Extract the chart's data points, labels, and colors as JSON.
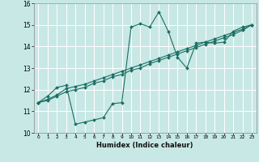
{
  "xlabel": "Humidex (Indice chaleur)",
  "background_color": "#c8e8e5",
  "grid_color": "#ffffff",
  "line_color": "#1a6e64",
  "xlim": [
    -0.5,
    23.5
  ],
  "ylim": [
    10,
    16
  ],
  "xticks": [
    0,
    1,
    2,
    3,
    4,
    5,
    6,
    7,
    8,
    9,
    10,
    11,
    12,
    13,
    14,
    15,
    16,
    17,
    18,
    19,
    20,
    21,
    22,
    23
  ],
  "yticks": [
    10,
    11,
    12,
    13,
    14,
    15,
    16
  ],
  "line1_x": [
    0,
    1,
    2,
    3,
    4,
    5,
    6,
    7,
    8,
    9,
    10,
    11,
    12,
    13,
    14,
    15,
    16,
    17,
    18,
    19,
    20,
    21,
    22,
    23
  ],
  "line1_y": [
    11.4,
    11.7,
    12.1,
    12.2,
    10.4,
    10.5,
    10.6,
    10.7,
    11.35,
    11.4,
    14.9,
    15.05,
    14.9,
    15.6,
    14.7,
    13.5,
    13.0,
    14.15,
    14.2,
    14.15,
    14.2,
    14.7,
    14.9,
    15.0
  ],
  "line2_x": [
    0,
    1,
    2,
    3,
    4,
    5,
    6,
    7,
    8,
    9,
    10,
    11,
    12,
    13,
    14,
    15,
    16,
    17,
    18,
    19,
    20,
    21,
    22,
    23
  ],
  "line2_y": [
    11.4,
    11.5,
    11.7,
    11.9,
    12.0,
    12.1,
    12.3,
    12.4,
    12.6,
    12.7,
    12.9,
    13.0,
    13.2,
    13.35,
    13.5,
    13.65,
    13.8,
    13.95,
    14.1,
    14.25,
    14.4,
    14.55,
    14.75,
    15.0
  ],
  "line3_x": [
    0,
    1,
    2,
    3,
    4,
    5,
    6,
    7,
    8,
    9,
    10,
    11,
    12,
    13,
    14,
    15,
    16,
    17,
    18,
    19,
    20,
    21,
    22,
    23
  ],
  "line3_y": [
    11.4,
    11.55,
    11.75,
    12.05,
    12.15,
    12.25,
    12.4,
    12.55,
    12.7,
    12.85,
    13.0,
    13.15,
    13.3,
    13.45,
    13.6,
    13.75,
    13.9,
    14.05,
    14.2,
    14.35,
    14.5,
    14.65,
    14.8,
    15.0
  ]
}
